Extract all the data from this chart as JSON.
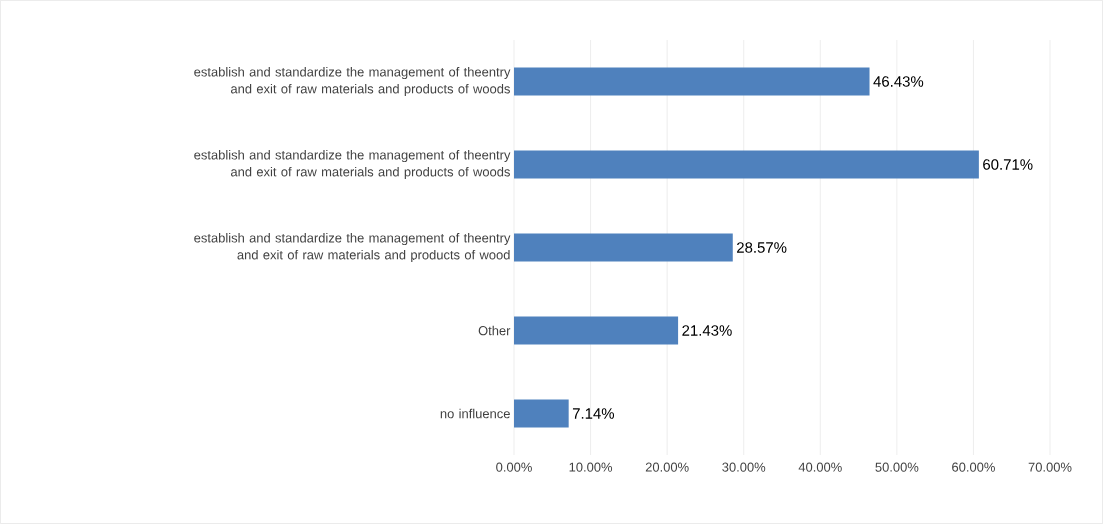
{
  "chart_data": {
    "type": "bar",
    "orientation": "horizontal",
    "categories": [
      "establish and standardize the management of theentry and exit of raw materials and products of woods",
      "establish and standardize the management of theentry and exit of raw materials and products of woods",
      "establish and standardize the management of theentry and exit of raw materials and products of wood",
      "Other",
      "no influence"
    ],
    "values": [
      46.43,
      60.71,
      28.57,
      21.43,
      7.14
    ],
    "value_labels": [
      "46.43%",
      "60.71%",
      "28.57%",
      "21.43%",
      "7.14%"
    ],
    "color": "#4f81bd",
    "xlim": [
      0,
      70
    ],
    "xticks": [
      {
        "value": 0,
        "label": "0.00%"
      },
      {
        "value": 10,
        "label": "10.00%"
      },
      {
        "value": 20,
        "label": "20.00%"
      },
      {
        "value": 30,
        "label": "30.00%"
      },
      {
        "value": 40,
        "label": "40.00%"
      },
      {
        "value": 50,
        "label": "50.00%"
      },
      {
        "value": 60,
        "label": "60.00%"
      },
      {
        "value": 70,
        "label": "70.00%"
      }
    ],
    "grid": "x"
  }
}
